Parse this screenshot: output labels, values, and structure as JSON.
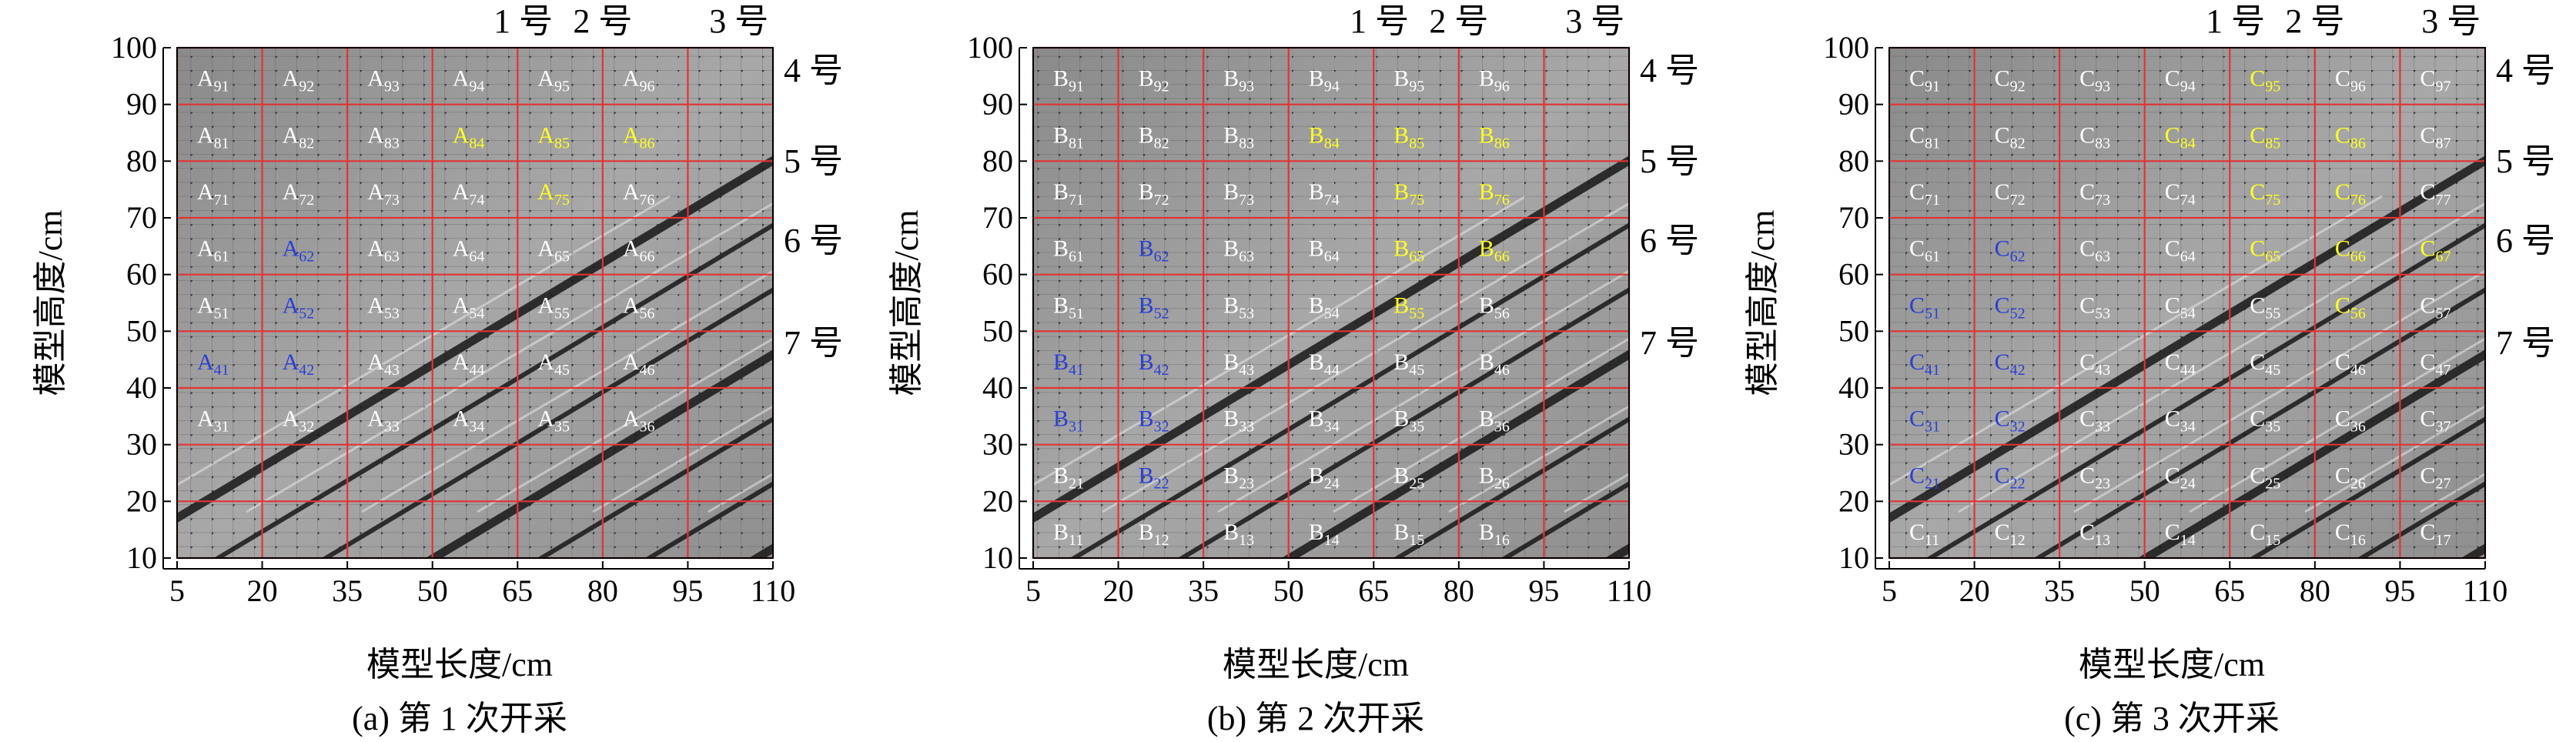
{
  "panels": [
    {
      "id": "a",
      "caption": "(a) 第 1 次开采",
      "letter": "A",
      "xlabel": "模型长度/cm",
      "ylabel": "模型高度/cm",
      "x_ticks": [
        "5",
        "20",
        "35",
        "50",
        "65",
        "80",
        "95",
        "110"
      ],
      "y_ticks": [
        "10",
        "20",
        "30",
        "40",
        "50",
        "60",
        "70",
        "80",
        "90",
        "100"
      ],
      "top_labels": [
        "1 号",
        "2 号",
        "3 号"
      ],
      "right_labels": [
        "4 号",
        "5 号",
        "6 号",
        "7 号"
      ],
      "cells": [
        {
          "sub": "91",
          "col": 0,
          "row": 9,
          "color": "white"
        },
        {
          "sub": "92",
          "col": 1,
          "row": 9,
          "color": "white"
        },
        {
          "sub": "93",
          "col": 2,
          "row": 9,
          "color": "white"
        },
        {
          "sub": "94",
          "col": 3,
          "row": 9,
          "color": "white"
        },
        {
          "sub": "95",
          "col": 4,
          "row": 9,
          "color": "white"
        },
        {
          "sub": "96",
          "col": 5,
          "row": 9,
          "color": "white"
        },
        {
          "sub": "81",
          "col": 0,
          "row": 8,
          "color": "white"
        },
        {
          "sub": "82",
          "col": 1,
          "row": 8,
          "color": "white"
        },
        {
          "sub": "83",
          "col": 2,
          "row": 8,
          "color": "white"
        },
        {
          "sub": "84",
          "col": 3,
          "row": 8,
          "color": "yellow"
        },
        {
          "sub": "85",
          "col": 4,
          "row": 8,
          "color": "yellow"
        },
        {
          "sub": "86",
          "col": 5,
          "row": 8,
          "color": "yellow"
        },
        {
          "sub": "71",
          "col": 0,
          "row": 7,
          "color": "white"
        },
        {
          "sub": "72",
          "col": 1,
          "row": 7,
          "color": "white"
        },
        {
          "sub": "73",
          "col": 2,
          "row": 7,
          "color": "white"
        },
        {
          "sub": "74",
          "col": 3,
          "row": 7,
          "color": "white"
        },
        {
          "sub": "75",
          "col": 4,
          "row": 7,
          "color": "yellow"
        },
        {
          "sub": "76",
          "col": 5,
          "row": 7,
          "color": "white"
        },
        {
          "sub": "61",
          "col": 0,
          "row": 6,
          "color": "white"
        },
        {
          "sub": "62",
          "col": 1,
          "row": 6,
          "color": "blue"
        },
        {
          "sub": "63",
          "col": 2,
          "row": 6,
          "color": "white"
        },
        {
          "sub": "64",
          "col": 3,
          "row": 6,
          "color": "white"
        },
        {
          "sub": "65",
          "col": 4,
          "row": 6,
          "color": "white"
        },
        {
          "sub": "66",
          "col": 5,
          "row": 6,
          "color": "white"
        },
        {
          "sub": "51",
          "col": 0,
          "row": 5,
          "color": "white"
        },
        {
          "sub": "52",
          "col": 1,
          "row": 5,
          "color": "blue"
        },
        {
          "sub": "53",
          "col": 2,
          "row": 5,
          "color": "white"
        },
        {
          "sub": "54",
          "col": 3,
          "row": 5,
          "color": "white"
        },
        {
          "sub": "55",
          "col": 4,
          "row": 5,
          "color": "white"
        },
        {
          "sub": "56",
          "col": 5,
          "row": 5,
          "color": "white"
        },
        {
          "sub": "41",
          "col": 0,
          "row": 4,
          "color": "blue"
        },
        {
          "sub": "42",
          "col": 1,
          "row": 4,
          "color": "blue"
        },
        {
          "sub": "43",
          "col": 2,
          "row": 4,
          "color": "white"
        },
        {
          "sub": "44",
          "col": 3,
          "row": 4,
          "color": "white"
        },
        {
          "sub": "45",
          "col": 4,
          "row": 4,
          "color": "white"
        },
        {
          "sub": "46",
          "col": 5,
          "row": 4,
          "color": "white"
        },
        {
          "sub": "31",
          "col": 0,
          "row": 3,
          "color": "white"
        },
        {
          "sub": "32",
          "col": 1,
          "row": 3,
          "color": "white"
        },
        {
          "sub": "33",
          "col": 2,
          "row": 3,
          "color": "white"
        },
        {
          "sub": "34",
          "col": 3,
          "row": 3,
          "color": "white"
        },
        {
          "sub": "35",
          "col": 4,
          "row": 3,
          "color": "white"
        },
        {
          "sub": "36",
          "col": 5,
          "row": 3,
          "color": "white"
        }
      ]
    },
    {
      "id": "b",
      "caption": "(b) 第 2 次开采",
      "letter": "B",
      "xlabel": "模型长度/cm",
      "ylabel": "模型高度/cm",
      "x_ticks": [
        "5",
        "20",
        "35",
        "50",
        "65",
        "80",
        "95",
        "110"
      ],
      "y_ticks": [
        "10",
        "20",
        "30",
        "40",
        "50",
        "60",
        "70",
        "80",
        "90",
        "100"
      ],
      "top_labels": [
        "1 号",
        "2 号",
        "3 号"
      ],
      "right_labels": [
        "4 号",
        "5 号",
        "6 号",
        "7 号"
      ],
      "cells": [
        {
          "sub": "91",
          "col": 0,
          "row": 9,
          "color": "white"
        },
        {
          "sub": "92",
          "col": 1,
          "row": 9,
          "color": "white"
        },
        {
          "sub": "93",
          "col": 2,
          "row": 9,
          "color": "white"
        },
        {
          "sub": "94",
          "col": 3,
          "row": 9,
          "color": "white"
        },
        {
          "sub": "95",
          "col": 4,
          "row": 9,
          "color": "white"
        },
        {
          "sub": "96",
          "col": 5,
          "row": 9,
          "color": "white"
        },
        {
          "sub": "81",
          "col": 0,
          "row": 8,
          "color": "white"
        },
        {
          "sub": "82",
          "col": 1,
          "row": 8,
          "color": "white"
        },
        {
          "sub": "83",
          "col": 2,
          "row": 8,
          "color": "white"
        },
        {
          "sub": "84",
          "col": 3,
          "row": 8,
          "color": "yellow"
        },
        {
          "sub": "85",
          "col": 4,
          "row": 8,
          "color": "yellow"
        },
        {
          "sub": "86",
          "col": 5,
          "row": 8,
          "color": "yellow"
        },
        {
          "sub": "71",
          "col": 0,
          "row": 7,
          "color": "white"
        },
        {
          "sub": "72",
          "col": 1,
          "row": 7,
          "color": "white"
        },
        {
          "sub": "73",
          "col": 2,
          "row": 7,
          "color": "white"
        },
        {
          "sub": "74",
          "col": 3,
          "row": 7,
          "color": "white"
        },
        {
          "sub": "75",
          "col": 4,
          "row": 7,
          "color": "yellow"
        },
        {
          "sub": "76",
          "col": 5,
          "row": 7,
          "color": "yellow"
        },
        {
          "sub": "61",
          "col": 0,
          "row": 6,
          "color": "white"
        },
        {
          "sub": "62",
          "col": 1,
          "row": 6,
          "color": "blue"
        },
        {
          "sub": "63",
          "col": 2,
          "row": 6,
          "color": "white"
        },
        {
          "sub": "64",
          "col": 3,
          "row": 6,
          "color": "white"
        },
        {
          "sub": "65",
          "col": 4,
          "row": 6,
          "color": "yellow"
        },
        {
          "sub": "66",
          "col": 5,
          "row": 6,
          "color": "yellow"
        },
        {
          "sub": "51",
          "col": 0,
          "row": 5,
          "color": "white"
        },
        {
          "sub": "52",
          "col": 1,
          "row": 5,
          "color": "blue"
        },
        {
          "sub": "53",
          "col": 2,
          "row": 5,
          "color": "white"
        },
        {
          "sub": "54",
          "col": 3,
          "row": 5,
          "color": "white"
        },
        {
          "sub": "55",
          "col": 4,
          "row": 5,
          "color": "yellow"
        },
        {
          "sub": "56",
          "col": 5,
          "row": 5,
          "color": "white"
        },
        {
          "sub": "41",
          "col": 0,
          "row": 4,
          "color": "blue"
        },
        {
          "sub": "42",
          "col": 1,
          "row": 4,
          "color": "blue"
        },
        {
          "sub": "43",
          "col": 2,
          "row": 4,
          "color": "white"
        },
        {
          "sub": "44",
          "col": 3,
          "row": 4,
          "color": "white"
        },
        {
          "sub": "45",
          "col": 4,
          "row": 4,
          "color": "white"
        },
        {
          "sub": "46",
          "col": 5,
          "row": 4,
          "color": "white"
        },
        {
          "sub": "31",
          "col": 0,
          "row": 3,
          "color": "blue"
        },
        {
          "sub": "32",
          "col": 1,
          "row": 3,
          "color": "blue"
        },
        {
          "sub": "33",
          "col": 2,
          "row": 3,
          "color": "white"
        },
        {
          "sub": "34",
          "col": 3,
          "row": 3,
          "color": "white"
        },
        {
          "sub": "35",
          "col": 4,
          "row": 3,
          "color": "white"
        },
        {
          "sub": "36",
          "col": 5,
          "row": 3,
          "color": "white"
        },
        {
          "sub": "21",
          "col": 0,
          "row": 2,
          "color": "white"
        },
        {
          "sub": "22",
          "col": 1,
          "row": 2,
          "color": "blue"
        },
        {
          "sub": "23",
          "col": 2,
          "row": 2,
          "color": "white"
        },
        {
          "sub": "24",
          "col": 3,
          "row": 2,
          "color": "white"
        },
        {
          "sub": "25",
          "col": 4,
          "row": 2,
          "color": "white"
        },
        {
          "sub": "26",
          "col": 5,
          "row": 2,
          "color": "white"
        },
        {
          "sub": "11",
          "col": 0,
          "row": 1,
          "color": "white"
        },
        {
          "sub": "12",
          "col": 1,
          "row": 1,
          "color": "white"
        },
        {
          "sub": "13",
          "col": 2,
          "row": 1,
          "color": "white"
        },
        {
          "sub": "14",
          "col": 3,
          "row": 1,
          "color": "white"
        },
        {
          "sub": "15",
          "col": 4,
          "row": 1,
          "color": "white"
        },
        {
          "sub": "16",
          "col": 5,
          "row": 1,
          "color": "white"
        }
      ]
    },
    {
      "id": "c",
      "caption": "(c) 第 3 次开采",
      "letter": "C",
      "xlabel": "模型长度/cm",
      "ylabel": "模型高度/cm",
      "x_ticks": [
        "5",
        "20",
        "35",
        "50",
        "65",
        "80",
        "95",
        "110"
      ],
      "y_ticks": [
        "10",
        "20",
        "30",
        "40",
        "50",
        "60",
        "70",
        "80",
        "90",
        "100"
      ],
      "top_labels": [
        "1 号",
        "2 号",
        "3 号"
      ],
      "right_labels": [
        "4 号",
        "5 号",
        "6 号",
        "7 号"
      ],
      "cells": [
        {
          "sub": "91",
          "col": 0,
          "row": 9,
          "color": "white"
        },
        {
          "sub": "92",
          "col": 1,
          "row": 9,
          "color": "white"
        },
        {
          "sub": "93",
          "col": 2,
          "row": 9,
          "color": "white"
        },
        {
          "sub": "94",
          "col": 3,
          "row": 9,
          "color": "white"
        },
        {
          "sub": "95",
          "col": 4,
          "row": 9,
          "color": "yellow"
        },
        {
          "sub": "96",
          "col": 5,
          "row": 9,
          "color": "white"
        },
        {
          "sub": "97",
          "col": 6,
          "row": 9,
          "color": "white"
        },
        {
          "sub": "81",
          "col": 0,
          "row": 8,
          "color": "white"
        },
        {
          "sub": "82",
          "col": 1,
          "row": 8,
          "color": "white"
        },
        {
          "sub": "83",
          "col": 2,
          "row": 8,
          "color": "white"
        },
        {
          "sub": "84",
          "col": 3,
          "row": 8,
          "color": "yellow"
        },
        {
          "sub": "85",
          "col": 4,
          "row": 8,
          "color": "yellow"
        },
        {
          "sub": "86",
          "col": 5,
          "row": 8,
          "color": "yellow"
        },
        {
          "sub": "87",
          "col": 6,
          "row": 8,
          "color": "white"
        },
        {
          "sub": "71",
          "col": 0,
          "row": 7,
          "color": "white"
        },
        {
          "sub": "72",
          "col": 1,
          "row": 7,
          "color": "white"
        },
        {
          "sub": "73",
          "col": 2,
          "row": 7,
          "color": "white"
        },
        {
          "sub": "74",
          "col": 3,
          "row": 7,
          "color": "white"
        },
        {
          "sub": "75",
          "col": 4,
          "row": 7,
          "color": "yellow"
        },
        {
          "sub": "76",
          "col": 5,
          "row": 7,
          "color": "yellow"
        },
        {
          "sub": "77",
          "col": 6,
          "row": 7,
          "color": "white"
        },
        {
          "sub": "61",
          "col": 0,
          "row": 6,
          "color": "white"
        },
        {
          "sub": "62",
          "col": 1,
          "row": 6,
          "color": "blue"
        },
        {
          "sub": "63",
          "col": 2,
          "row": 6,
          "color": "white"
        },
        {
          "sub": "64",
          "col": 3,
          "row": 6,
          "color": "white"
        },
        {
          "sub": "65",
          "col": 4,
          "row": 6,
          "color": "yellow"
        },
        {
          "sub": "66",
          "col": 5,
          "row": 6,
          "color": "yellow"
        },
        {
          "sub": "67",
          "col": 6,
          "row": 6,
          "color": "yellow"
        },
        {
          "sub": "51",
          "col": 0,
          "row": 5,
          "color": "blue"
        },
        {
          "sub": "52",
          "col": 1,
          "row": 5,
          "color": "blue"
        },
        {
          "sub": "53",
          "col": 2,
          "row": 5,
          "color": "white"
        },
        {
          "sub": "54",
          "col": 3,
          "row": 5,
          "color": "white"
        },
        {
          "sub": "55",
          "col": 4,
          "row": 5,
          "color": "white"
        },
        {
          "sub": "56",
          "col": 5,
          "row": 5,
          "color": "yellow"
        },
        {
          "sub": "57",
          "col": 6,
          "row": 5,
          "color": "white"
        },
        {
          "sub": "41",
          "col": 0,
          "row": 4,
          "color": "blue"
        },
        {
          "sub": "42",
          "col": 1,
          "row": 4,
          "color": "blue"
        },
        {
          "sub": "43",
          "col": 2,
          "row": 4,
          "color": "white"
        },
        {
          "sub": "44",
          "col": 3,
          "row": 4,
          "color": "white"
        },
        {
          "sub": "45",
          "col": 4,
          "row": 4,
          "color": "white"
        },
        {
          "sub": "46",
          "col": 5,
          "row": 4,
          "color": "white"
        },
        {
          "sub": "47",
          "col": 6,
          "row": 4,
          "color": "white"
        },
        {
          "sub": "31",
          "col": 0,
          "row": 3,
          "color": "blue"
        },
        {
          "sub": "32",
          "col": 1,
          "row": 3,
          "color": "blue"
        },
        {
          "sub": "33",
          "col": 2,
          "row": 3,
          "color": "white"
        },
        {
          "sub": "34",
          "col": 3,
          "row": 3,
          "color": "white"
        },
        {
          "sub": "35",
          "col": 4,
          "row": 3,
          "color": "white"
        },
        {
          "sub": "36",
          "col": 5,
          "row": 3,
          "color": "white"
        },
        {
          "sub": "37",
          "col": 6,
          "row": 3,
          "color": "white"
        },
        {
          "sub": "21",
          "col": 0,
          "row": 2,
          "color": "blue"
        },
        {
          "sub": "22",
          "col": 1,
          "row": 2,
          "color": "blue"
        },
        {
          "sub": "23",
          "col": 2,
          "row": 2,
          "color": "white"
        },
        {
          "sub": "24",
          "col": 3,
          "row": 2,
          "color": "white"
        },
        {
          "sub": "25",
          "col": 4,
          "row": 2,
          "color": "white"
        },
        {
          "sub": "26",
          "col": 5,
          "row": 2,
          "color": "white"
        },
        {
          "sub": "27",
          "col": 6,
          "row": 2,
          "color": "white"
        },
        {
          "sub": "11",
          "col": 0,
          "row": 1,
          "color": "white"
        },
        {
          "sub": "12",
          "col": 1,
          "row": 1,
          "color": "white"
        },
        {
          "sub": "13",
          "col": 2,
          "row": 1,
          "color": "white"
        },
        {
          "sub": "14",
          "col": 3,
          "row": 1,
          "color": "white"
        },
        {
          "sub": "15",
          "col": 4,
          "row": 1,
          "color": "white"
        },
        {
          "sub": "16",
          "col": 5,
          "row": 1,
          "color": "white"
        },
        {
          "sub": "17",
          "col": 6,
          "row": 1,
          "color": "white"
        }
      ]
    }
  ],
  "colors": {
    "grid": "#e23333",
    "label_white": "#ffffff",
    "label_yellow": "#ffff22",
    "label_blue": "#2a3fd6",
    "photo_base": "#9c9c9c",
    "crack": "#181818",
    "axis": "#000000"
  }
}
